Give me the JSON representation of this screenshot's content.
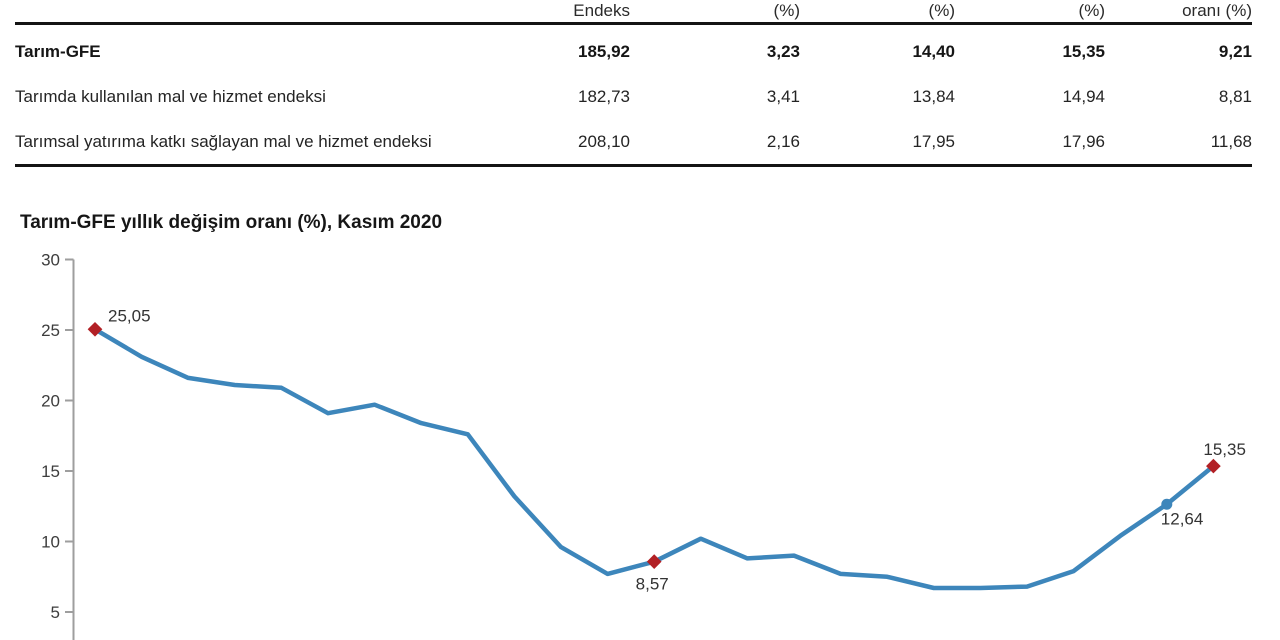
{
  "table": {
    "columns": [
      "",
      "Endeks",
      "(%)",
      "(%)",
      "(%)",
      "oranı (%)"
    ],
    "rows": [
      {
        "label": "Tarım-GFE",
        "bold": true,
        "values": [
          "185,92",
          "3,23",
          "14,40",
          "15,35",
          "9,21"
        ]
      },
      {
        "label": "Tarımda kullanılan mal ve hizmet endeksi",
        "bold": false,
        "values": [
          "182,73",
          "3,41",
          "13,84",
          "14,94",
          "8,81"
        ]
      },
      {
        "label": "Tarımsal yatırıma katkı sağlayan mal ve hizmet endeksi",
        "bold": false,
        "values": [
          "208,10",
          "2,16",
          "17,95",
          "17,96",
          "11,68"
        ]
      }
    ]
  },
  "chart": {
    "title": "Tarım-GFE yıllık değişim oranı (%), Kasım 2020"
  },
  "chart_data": {
    "type": "line",
    "title": "Tarım-GFE yıllık değişim oranı (%), Kasım 2020",
    "ylabel": "",
    "xlabel": "",
    "y_ticks": [
      30,
      25,
      20,
      15,
      10,
      5
    ],
    "ylim_visible": [
      3.5,
      30
    ],
    "grid": false,
    "legend": false,
    "x_tick_labels_visible": false,
    "series": [
      {
        "name": "Tarım-GFE yıllık değişim oranı (%)",
        "values": [
          25.05,
          23.1,
          21.6,
          21.1,
          20.9,
          19.1,
          19.7,
          18.4,
          17.6,
          13.2,
          9.6,
          7.7,
          8.57,
          10.2,
          8.8,
          9.0,
          7.7,
          7.5,
          6.7,
          6.7,
          6.8,
          7.9,
          10.4,
          12.64,
          15.35
        ]
      }
    ],
    "highlighted_points": [
      {
        "index": 0,
        "label": "25,05",
        "marker": "red-diamond",
        "label_pos": "above-right"
      },
      {
        "index": 12,
        "label": "8,57",
        "marker": "red-diamond",
        "label_pos": "below"
      },
      {
        "index": 23,
        "label": "12,64",
        "marker": "blue-circle",
        "label_pos": "below-right"
      },
      {
        "index": 24,
        "label": "15,35",
        "marker": "red-diamond",
        "label_pos": "above"
      }
    ],
    "colors": {
      "line": "#3d86bb",
      "marker_red": "#b22025",
      "marker_blue": "#3d86bb",
      "axis": "#9e9e9e",
      "tick_label": "#3d3d3d",
      "point_label": "#333333"
    }
  }
}
